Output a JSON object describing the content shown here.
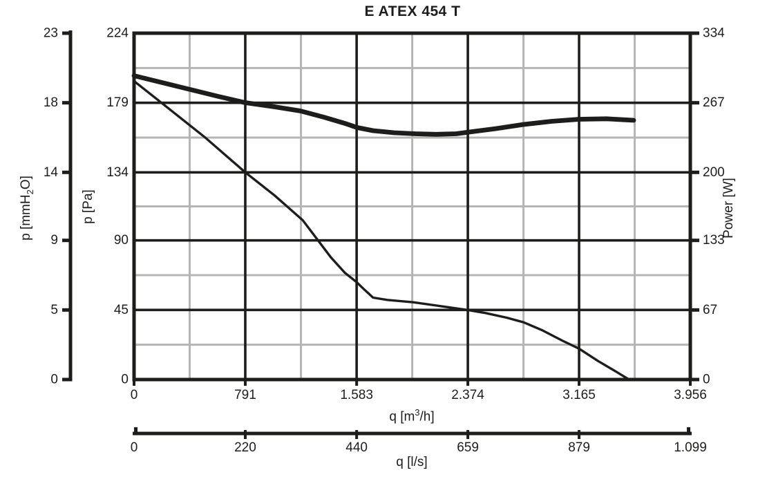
{
  "chart_data": {
    "type": "line",
    "title": "E ATEX 454 T",
    "grid": {
      "major": "on-black",
      "minor": "midpoint-gray"
    },
    "legend": "none",
    "colors": {
      "line": "#1d1d1b",
      "minor_grid": "#b5b5b5",
      "background": "#ffffff"
    },
    "axes": {
      "y_left_mmh2o": {
        "label": "p [mmH₂O]",
        "label_parts": {
          "prefix": "p [mmH",
          "sub": "2",
          "suffix": "O]"
        },
        "ticks": [
          0,
          5,
          9,
          14,
          18,
          23
        ],
        "note": "outer standalone axis, ticks aligned with Pa ticks"
      },
      "y_left_pa": {
        "label": "p [Pa]",
        "ticks": [
          0,
          45,
          90,
          134,
          179,
          224
        ],
        "range": [
          0,
          224
        ]
      },
      "y_right_power": {
        "label": "Power [W]",
        "ticks": [
          0,
          67,
          133,
          200,
          267,
          334
        ],
        "range": [
          0,
          334
        ]
      },
      "x_flow_m3h": {
        "label": "q [m³/h]",
        "label_parts": {
          "prefix": "q [m",
          "sup": "3",
          "suffix": "/h]"
        },
        "tick_values": [
          0,
          791,
          1583,
          2374,
          3165,
          3956
        ],
        "tick_labels": [
          "0",
          "791",
          "1.583",
          "2.374",
          "3.165",
          "3.956"
        ],
        "range": [
          0,
          3956
        ]
      },
      "x_flow_ls": {
        "label": "q [l/s]",
        "tick_values": [
          0,
          220,
          440,
          659,
          879,
          1099
        ],
        "tick_labels": [
          "0",
          "220",
          "440",
          "659",
          "879",
          "1.099"
        ]
      }
    },
    "series": [
      {
        "name": "pressure-curve",
        "y_axis": "y_left_pa",
        "stroke_width": 3.4,
        "points": [
          [
            0,
            193
          ],
          [
            250,
            175
          ],
          [
            500,
            157
          ],
          [
            791,
            134
          ],
          [
            1000,
            119
          ],
          [
            1200,
            103
          ],
          [
            1400,
            79
          ],
          [
            1500,
            69
          ],
          [
            1583,
            63
          ],
          [
            1640,
            58
          ],
          [
            1700,
            53
          ],
          [
            1800,
            51.5
          ],
          [
            1985,
            50
          ],
          [
            2180,
            47.5
          ],
          [
            2374,
            45
          ],
          [
            2500,
            43
          ],
          [
            2650,
            40
          ],
          [
            2770,
            37
          ],
          [
            2900,
            32
          ],
          [
            3050,
            25
          ],
          [
            3165,
            20
          ],
          [
            3300,
            12
          ],
          [
            3430,
            5
          ],
          [
            3520,
            0
          ]
        ]
      },
      {
        "name": "power-curve",
        "y_axis": "y_right_power",
        "stroke_width": 6.8,
        "points": [
          [
            0,
            293
          ],
          [
            300,
            283
          ],
          [
            600,
            273
          ],
          [
            791,
            267
          ],
          [
            1000,
            263
          ],
          [
            1184,
            259
          ],
          [
            1350,
            253
          ],
          [
            1500,
            247
          ],
          [
            1587,
            243
          ],
          [
            1700,
            240
          ],
          [
            1850,
            238
          ],
          [
            2000,
            237
          ],
          [
            2150,
            236.5
          ],
          [
            2290,
            237
          ],
          [
            2374,
            238.5
          ],
          [
            2575,
            242
          ],
          [
            2771,
            246
          ],
          [
            2968,
            249
          ],
          [
            3165,
            251
          ],
          [
            3360,
            251.5
          ],
          [
            3553,
            250
          ]
        ]
      }
    ]
  }
}
